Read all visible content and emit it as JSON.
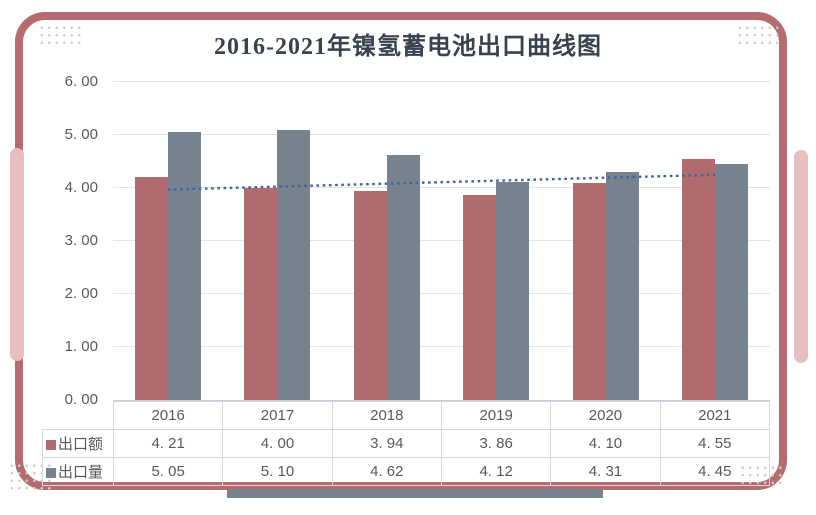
{
  "title": "2016-2021年镍氢蓄电池出口曲线图",
  "frame": {
    "border_color": "#b56b70",
    "side_accent_color": "#e7bfbf",
    "bottom_accent_color": "#76838f",
    "corner_dots_color": "#cccccc",
    "background": "#ffffff"
  },
  "chart_data": {
    "type": "bar",
    "title": "2016-2021年镍氢蓄电池出口曲线图",
    "categories": [
      "2016",
      "2017",
      "2018",
      "2019",
      "2020",
      "2021"
    ],
    "series": [
      {
        "name": "出口额",
        "color": "#b16a6e",
        "values": [
          4.21,
          4.0,
          3.94,
          3.86,
          4.1,
          4.55
        ]
      },
      {
        "name": "出口量",
        "color": "#76838f",
        "values": [
          5.05,
          5.1,
          4.62,
          4.12,
          4.31,
          4.45
        ]
      }
    ],
    "trendline": {
      "for_series": "出口额",
      "style": "dotted",
      "color": "#3c64a0",
      "start_value": 3.97,
      "end_value": 4.25
    },
    "xlabel": "",
    "ylabel": "",
    "ylim": [
      0,
      6
    ],
    "yticks": [
      0,
      1,
      2,
      3,
      4,
      5,
      6
    ],
    "ytick_labels": [
      "0. 00",
      "1. 00",
      "2. 00",
      "3. 00",
      "4. 00",
      "5. 00",
      "6. 00"
    ],
    "grid": true,
    "legend_position": "data-table-left",
    "value_display_format": "0. 00",
    "data_table": true
  }
}
